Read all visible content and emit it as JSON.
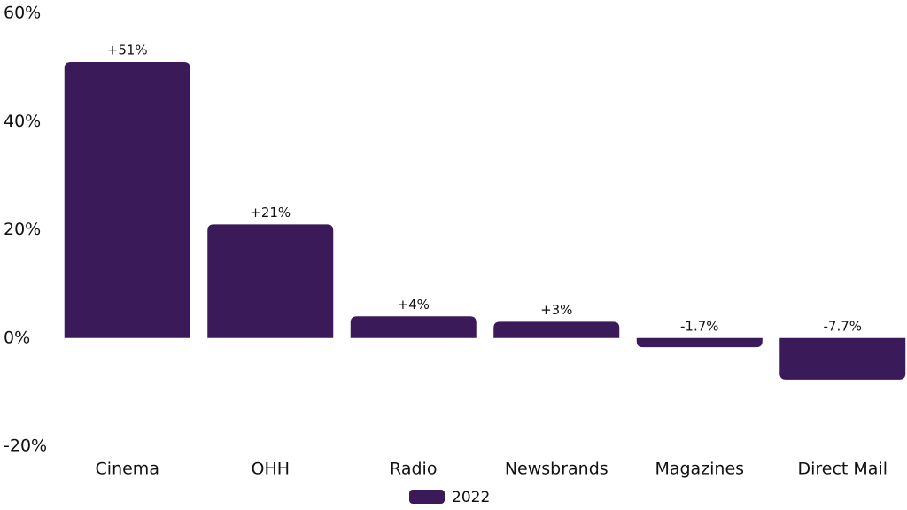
{
  "chart_data": {
    "type": "bar",
    "categories": [
      "Cinema",
      "OHH",
      "Radio",
      "Newsbrands",
      "Magazines",
      "Direct Mail"
    ],
    "series": [
      {
        "name": "2022",
        "color": "#3b1a5a",
        "values": [
          51,
          21,
          4,
          3,
          -1.7,
          -7.7
        ],
        "value_labels": [
          "+51%",
          "+21%",
          "+4%",
          "+3%",
          "-1.7%",
          "-7.7%"
        ]
      }
    ],
    "ylim": [
      -20,
      60
    ],
    "yticks": [
      {
        "value": -20,
        "label": "-20%"
      },
      {
        "value": 0,
        "label": "0%"
      },
      {
        "value": 20,
        "label": "20%"
      },
      {
        "value": 40,
        "label": "40%"
      },
      {
        "value": 60,
        "label": "60%"
      }
    ],
    "grid": false,
    "legend": "bottom"
  }
}
